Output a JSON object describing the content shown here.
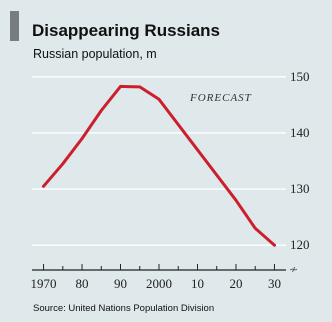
{
  "chart_data": {
    "type": "line",
    "title": "Disappearing Russians",
    "subtitle": "Russian population, m",
    "source": "Source: United Nations Population Division",
    "annotation": "FORECAST",
    "x_ticks": [
      1970,
      1980,
      1990,
      2000,
      2010,
      2020,
      2030
    ],
    "x_tick_labels": [
      "1970",
      "80",
      "90",
      "2000",
      "10",
      "20",
      "30"
    ],
    "y_ticks": [
      120,
      130,
      140,
      150
    ],
    "y_tick_labels": [
      "120",
      "130",
      "140",
      "150"
    ],
    "xlim": [
      1967,
      2033
    ],
    "ylim": [
      117,
      153
    ],
    "y_axis_side": "right",
    "grid": "horizontal",
    "colors": {
      "background": "#dfe8ea",
      "line": "#cc1f2d",
      "grid": "#ffffff",
      "accent": "#777c80"
    },
    "series": [
      {
        "x": [
          1970,
          1975,
          1980,
          1985,
          1990,
          1995,
          2000,
          2005,
          2010,
          2015,
          2020,
          2025,
          2030
        ],
        "values": [
          130.5,
          134.5,
          139.0,
          144.0,
          148.3,
          148.2,
          146.0,
          141.5,
          137.0,
          132.5,
          128.0,
          123.0,
          120.0
        ]
      }
    ]
  }
}
